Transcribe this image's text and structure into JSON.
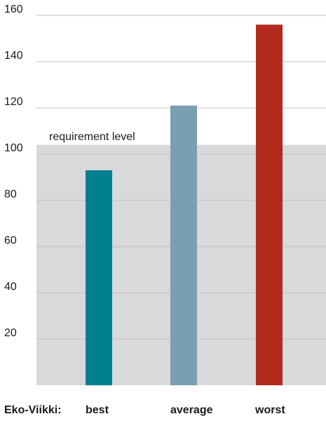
{
  "chart_data": {
    "type": "bar",
    "row_label": "Eko-Viikki:",
    "categories": [
      "best",
      "average",
      "worst"
    ],
    "values": [
      93,
      121,
      156
    ],
    "bar_colors": [
      "#00808f",
      "#7a9fb0",
      "#b22a1e"
    ],
    "requirement": {
      "label": "requirement level",
      "value": 104,
      "color": "#d8d9db"
    },
    "ylim": [
      0,
      170
    ],
    "yticks": [
      20,
      40,
      60,
      80,
      100,
      120,
      140,
      160
    ],
    "grid": true,
    "grid_color": "#bfc0c2"
  }
}
